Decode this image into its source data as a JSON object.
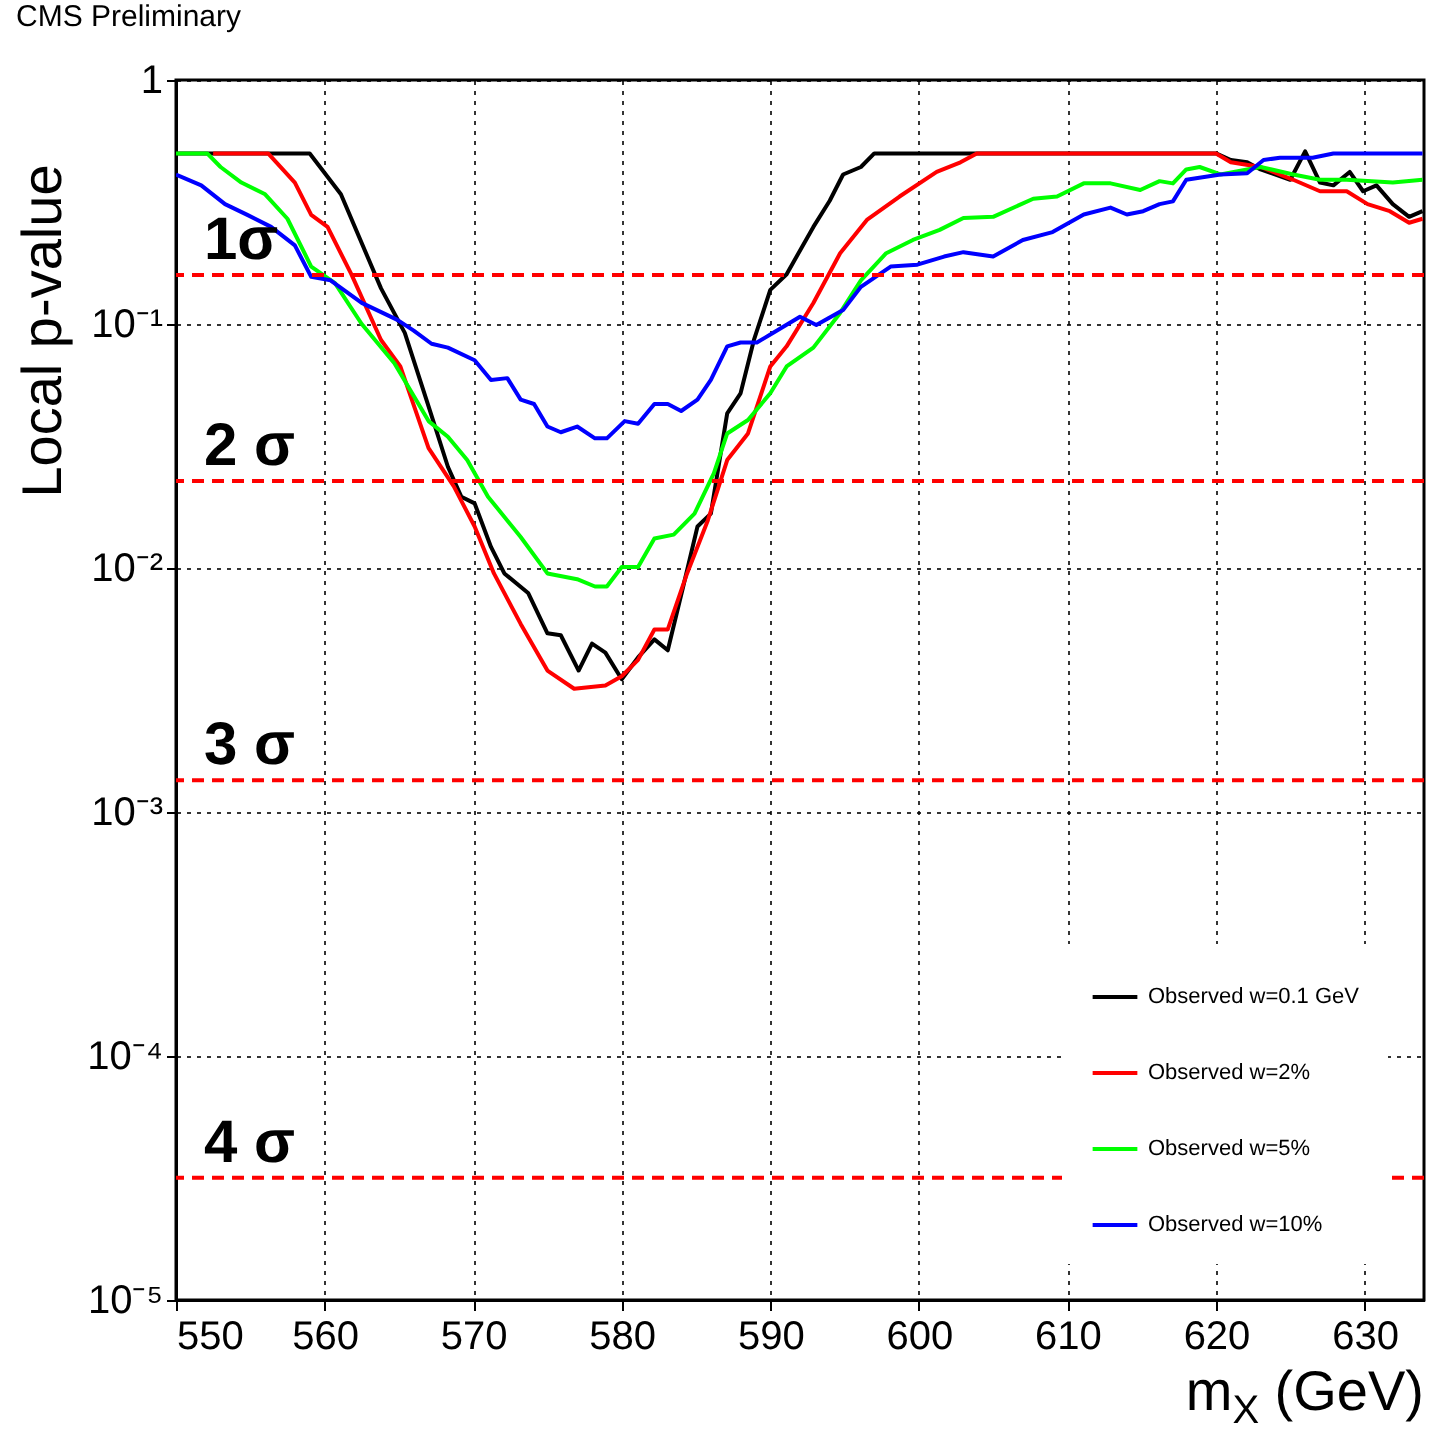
{
  "chart_data": {
    "type": "line",
    "title": "CMS Preliminary",
    "xlabel": "m$_{X}$ (GeV)",
    "ylabel": "Local p-value",
    "xlim": [
      550,
      634
    ],
    "xticks": [
      550,
      560,
      570,
      580,
      590,
      600,
      610,
      620,
      630
    ],
    "ylim": [
      1e-05,
      1
    ],
    "yticks": [
      1,
      {
        "value": 0.1,
        "label": "10⁻¹"
      },
      {
        "value": 0.01,
        "label": "10⁻²"
      },
      {
        "value": 0.001,
        "label": "10⁻³"
      },
      {
        "value": 0.0001,
        "label": "10⁻⁴"
      },
      {
        "value": 1e-05,
        "label": "10⁻⁵"
      }
    ],
    "log": true,
    "grid": true,
    "legend": "bottom right",
    "series": [
      {
        "name": "Observed w=0.1 GeV",
        "color": "#000000",
        "x": [
          550,
          559,
          561.1,
          563.8,
          565.4,
          567,
          568.3,
          569.2,
          570.1,
          571.2,
          572.1,
          573.7,
          575,
          575.9,
          577.1,
          578,
          578.9,
          580,
          581.1,
          582.2,
          583.1,
          584.2,
          585.1,
          586,
          587.1,
          588,
          588.9,
          590,
          591.1,
          592.9,
          594,
          594.9,
          596.1,
          597,
          620,
          621,
          622.1,
          623,
          625,
          626,
          627,
          627.9,
          629,
          629.9,
          630.8,
          631.9,
          633,
          633.9
        ],
        "values": [
          0.5,
          0.5,
          0.34,
          0.14,
          0.092,
          0.046,
          0.026,
          0.0196,
          0.0184,
          0.0122,
          0.0095,
          0.0079,
          0.0054,
          0.0053,
          0.0038,
          0.0049,
          0.0045,
          0.0035,
          0.0043,
          0.0051,
          0.0046,
          0.0087,
          0.0148,
          0.0167,
          0.043,
          0.052,
          0.086,
          0.138,
          0.16,
          0.25,
          0.32,
          0.41,
          0.44,
          0.5,
          0.5,
          0.47,
          0.46,
          0.43,
          0.39,
          0.51,
          0.38,
          0.37,
          0.42,
          0.35,
          0.37,
          0.31,
          0.275,
          0.29
        ]
      },
      {
        "name": "Observed w=2%",
        "color": "#ff0000",
        "x": [
          552.5,
          556.2,
          558,
          559.1,
          560.2,
          561.8,
          563.8,
          565.1,
          567,
          568.7,
          570.1,
          571.4,
          573.2,
          575,
          576.8,
          578.9,
          580,
          581.1,
          582.2,
          583.1,
          584.4,
          585.8,
          587.1,
          588.5,
          590,
          591.1,
          592.9,
          594.7,
          596.5,
          598.7,
          601.2,
          602.8,
          603.9,
          620,
          621,
          623,
          625.2,
          627,
          628.8,
          630.2,
          631.7,
          633,
          633.9
        ],
        "values": [
          0.5,
          0.5,
          0.38,
          0.28,
          0.25,
          0.16,
          0.086,
          0.067,
          0.031,
          0.0216,
          0.0148,
          0.0095,
          0.0059,
          0.0038,
          0.0032,
          0.0033,
          0.0036,
          0.0042,
          0.0056,
          0.0056,
          0.0095,
          0.0157,
          0.0277,
          0.0356,
          0.067,
          0.081,
          0.122,
          0.195,
          0.267,
          0.333,
          0.42,
          0.46,
          0.5,
          0.5,
          0.46,
          0.44,
          0.39,
          0.35,
          0.35,
          0.31,
          0.29,
          0.26,
          0.27
        ]
      },
      {
        "name": "Observed w=5%",
        "color": "#00ff00",
        "x": [
          550,
          552.1,
          553,
          554.4,
          556,
          557.5,
          559.1,
          560.7,
          562.5,
          564.7,
          567,
          568.3,
          569.6,
          571,
          573.2,
          575,
          577,
          578.2,
          579,
          580,
          581.1,
          582.2,
          583.5,
          584.9,
          586.2,
          587.1,
          588.5,
          590,
          591.1,
          592.9,
          594.7,
          596.1,
          597.8,
          599.6,
          601.4,
          603,
          605,
          607.7,
          609.3,
          611.1,
          612.9,
          614.9,
          616.2,
          617.1,
          618,
          618.9,
          620.3,
          623,
          625.2,
          627,
          628.8,
          631.9,
          633.9
        ],
        "values": [
          0.5,
          0.5,
          0.44,
          0.38,
          0.34,
          0.27,
          0.172,
          0.147,
          0.1,
          0.069,
          0.04,
          0.0345,
          0.0277,
          0.0196,
          0.0134,
          0.0095,
          0.009,
          0.0084,
          0.0084,
          0.0101,
          0.0101,
          0.0132,
          0.0137,
          0.0167,
          0.0244,
          0.0356,
          0.0404,
          0.052,
          0.067,
          0.08,
          0.111,
          0.151,
          0.195,
          0.221,
          0.243,
          0.272,
          0.275,
          0.326,
          0.333,
          0.377,
          0.377,
          0.354,
          0.385,
          0.377,
          0.43,
          0.44,
          0.41,
          0.44,
          0.41,
          0.39,
          0.39,
          0.38,
          0.39
        ]
      },
      {
        "name": "Observed w=10%",
        "color": "#0000ff",
        "x": [
          550,
          551.7,
          553.3,
          554.8,
          556.4,
          558,
          559.1,
          560.4,
          562.5,
          564.9,
          566,
          567.2,
          568.3,
          570.1,
          571.2,
          572.3,
          573.2,
          574.1,
          575,
          575.9,
          577,
          578.2,
          579,
          580.2,
          581.1,
          582.2,
          583.1,
          584,
          585.1,
          586,
          587.1,
          588,
          589.1,
          590.2,
          592,
          593.1,
          594.9,
          596.1,
          598.1,
          599.9,
          601.7,
          603,
          605,
          607,
          609,
          611.1,
          612.9,
          614,
          615.1,
          616.2,
          617.1,
          618,
          620.3,
          622.1,
          623.2,
          624.3,
          626.5,
          627.9,
          633.9
        ],
        "values": [
          0.41,
          0.37,
          0.31,
          0.28,
          0.25,
          0.21,
          0.156,
          0.151,
          0.122,
          0.104,
          0.094,
          0.083,
          0.08,
          0.071,
          0.059,
          0.06,
          0.049,
          0.047,
          0.038,
          0.036,
          0.038,
          0.034,
          0.034,
          0.04,
          0.039,
          0.047,
          0.047,
          0.044,
          0.049,
          0.059,
          0.081,
          0.084,
          0.084,
          0.092,
          0.107,
          0.099,
          0.114,
          0.142,
          0.172,
          0.175,
          0.189,
          0.197,
          0.189,
          0.221,
          0.238,
          0.281,
          0.3,
          0.281,
          0.29,
          0.31,
          0.318,
          0.39,
          0.41,
          0.415,
          0.47,
          0.48,
          0.48,
          0.5,
          0.5
        ]
      }
    ],
    "ref_lines": [
      {
        "axis": "y",
        "value": 0.1587,
        "label": "1σ",
        "color": "#ff0000",
        "line_style": "dashed"
      },
      {
        "axis": "y",
        "value": 0.02275,
        "label": "2 σ",
        "color": "#ff0000",
        "line_style": "dashed"
      },
      {
        "axis": "y",
        "value": 0.00135,
        "label": "3 σ",
        "color": "#ff0000",
        "line_style": "dashed"
      },
      {
        "axis": "y",
        "value": 3.17e-05,
        "label": "4 σ",
        "color": "#ff0000",
        "line_style": "dashed"
      }
    ]
  }
}
